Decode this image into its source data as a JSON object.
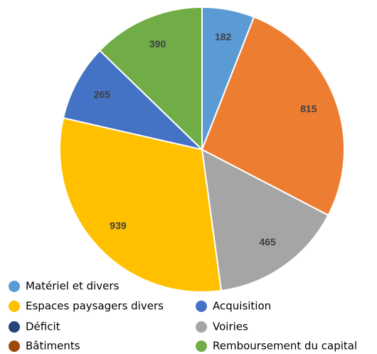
{
  "chart_data": {
    "type": "pie",
    "categories": [
      "Matériel et divers",
      null,
      "Voiries",
      "Espaces paysagers divers",
      "Acquisition",
      "Remboursement du capital",
      "Déficit",
      "Bâtiments"
    ],
    "values": [
      182,
      815,
      465,
      939,
      265,
      390,
      null,
      null
    ],
    "colors": [
      "#5b9bd5",
      "#ed7d31",
      "#a5a5a5",
      "#ffc000",
      "#4472c4",
      "#70ad47",
      "#264478",
      "#9e480e"
    ]
  }
}
